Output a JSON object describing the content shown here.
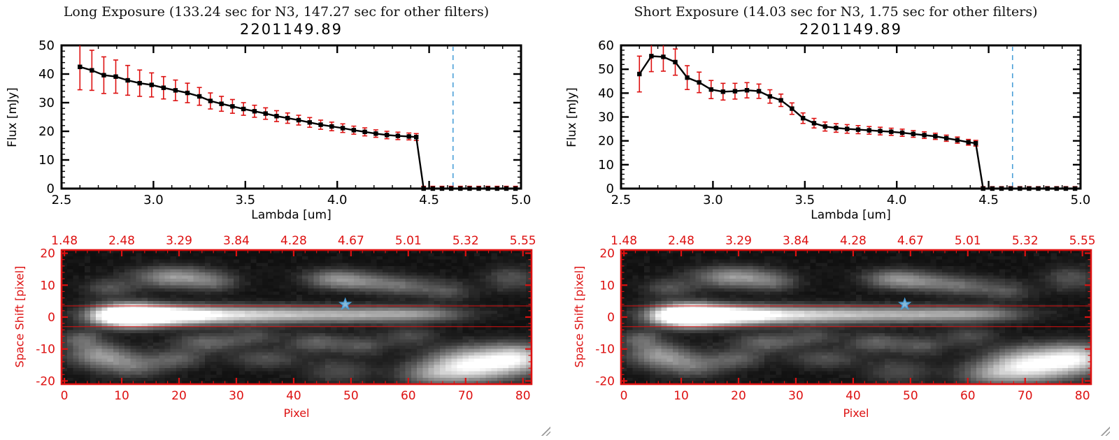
{
  "panels": [
    {
      "title": "Long Exposure (133.24 sec for N3, 147.27 sec for other filters)",
      "spectrum_title": "2201149.89",
      "flux_axis_label": "Flux [mJy]",
      "lambda_axis_label": "Lambda [um]",
      "space_axis_label": "Space Shift [pixel]",
      "pixel_axis_label": "Pixel"
    },
    {
      "title": "Short Exposure (14.03 sec for N3, 1.75 sec for other filters)",
      "spectrum_title": "2201149.89",
      "flux_axis_label": "Flux [mJy]",
      "lambda_axis_label": "Lambda [um]",
      "space_axis_label": "Space Shift [pixel]",
      "pixel_axis_label": "Pixel"
    }
  ],
  "colors": {
    "axis_red": "#dd1111",
    "dashed_blue": "#4a9fd8",
    "line_black": "#000000",
    "background": "#ffffff"
  },
  "image_blobs": [
    [
      11,
      0.5,
      4,
      2.2,
      1.6
    ],
    [
      18,
      0.5,
      6,
      2.0,
      0.85
    ],
    [
      28,
      0.6,
      10,
      1.9,
      0.5
    ],
    [
      42,
      0.8,
      12,
      1.8,
      0.4
    ],
    [
      55,
      0.8,
      8,
      1.7,
      0.3
    ],
    [
      63,
      1,
      5,
      1.6,
      0.22
    ],
    [
      8,
      9,
      3,
      2,
      0.22
    ],
    [
      19,
      12.5,
      4.5,
      2.2,
      0.5
    ],
    [
      26,
      11,
      3,
      2,
      0.25
    ],
    [
      47,
      12,
      3.5,
      2,
      0.4
    ],
    [
      53,
      11,
      4,
      2,
      0.3
    ],
    [
      60,
      9.5,
      4,
      2,
      0.25
    ],
    [
      67,
      8,
      3,
      2,
      0.18
    ],
    [
      78,
      12,
      3,
      2.5,
      0.22
    ],
    [
      3,
      -7,
      2.5,
      2,
      0.3
    ],
    [
      6,
      -12,
      3.5,
      2.5,
      0.45
    ],
    [
      12,
      -15,
      4,
      2.5,
      0.35
    ],
    [
      20,
      -13,
      3,
      2,
      0.25
    ],
    [
      25,
      -8,
      4,
      2,
      0.3
    ],
    [
      33,
      -6,
      3,
      1.8,
      0.2
    ],
    [
      35,
      -13,
      4,
      2,
      0.22
    ],
    [
      44,
      -8,
      3.5,
      2,
      0.28
    ],
    [
      52,
      -9,
      3,
      2,
      0.22
    ],
    [
      60,
      -6,
      3,
      2,
      0.2
    ],
    [
      48,
      -17,
      4,
      2.5,
      0.2
    ],
    [
      64,
      -18,
      4,
      2.5,
      0.35
    ],
    [
      71,
      -15,
      5,
      3.5,
      0.9
    ],
    [
      79,
      -13,
      4,
      3,
      0.75
    ]
  ],
  "chart_data": [
    {
      "panel": "long_exposure",
      "spectrum": {
        "type": "line",
        "title": "2201149.89",
        "xlabel": "Lambda [um]",
        "ylabel": "Flux [mJy]",
        "xlim": [
          2.5,
          5.0
        ],
        "ylim": [
          0,
          50
        ],
        "xticks": [
          2.5,
          3.0,
          3.5,
          4.0,
          4.5,
          5.0
        ],
        "xtick_labels": [
          "2.5",
          "3.0",
          "3.5",
          "4.0",
          "4.5",
          "5.0"
        ],
        "yticks": [
          0,
          10,
          20,
          30,
          40,
          50
        ],
        "ytick_labels": [
          "0",
          "10",
          "20",
          "30",
          "40",
          "50"
        ],
        "marker": "square",
        "line_color": "#000000",
        "error_color": "#dd1111",
        "dashed_line_x": 4.63,
        "dashed_line_color": "#4a9fd8",
        "points": [
          [
            2.6,
            42.5,
            8.0
          ],
          [
            2.665,
            41.3,
            7.0
          ],
          [
            2.73,
            39.6,
            6.4
          ],
          [
            2.795,
            39.1,
            5.8
          ],
          [
            2.86,
            37.8,
            5.2
          ],
          [
            2.925,
            36.8,
            4.6
          ],
          [
            2.99,
            36.2,
            4.2
          ],
          [
            3.055,
            35.2,
            3.9
          ],
          [
            3.12,
            34.3,
            3.6
          ],
          [
            3.185,
            33.4,
            3.4
          ],
          [
            3.25,
            32.2,
            3.1
          ],
          [
            3.31,
            30.6,
            2.8
          ],
          [
            3.37,
            29.6,
            2.6
          ],
          [
            3.43,
            28.7,
            2.4
          ],
          [
            3.49,
            27.8,
            2.2
          ],
          [
            3.55,
            27.0,
            2.1
          ],
          [
            3.61,
            26.2,
            2.0
          ],
          [
            3.67,
            25.3,
            1.9
          ],
          [
            3.73,
            24.6,
            1.8
          ],
          [
            3.79,
            23.9,
            1.7
          ],
          [
            3.85,
            23.1,
            1.7
          ],
          [
            3.91,
            22.3,
            1.6
          ],
          [
            3.97,
            21.7,
            1.5
          ],
          [
            4.03,
            21.1,
            1.5
          ],
          [
            4.09,
            20.4,
            1.4
          ],
          [
            4.15,
            19.8,
            1.4
          ],
          [
            4.21,
            19.2,
            1.3
          ],
          [
            4.27,
            18.7,
            1.3
          ],
          [
            4.33,
            18.4,
            1.3
          ],
          [
            4.39,
            18.2,
            1.2
          ],
          [
            4.43,
            18.0,
            1.2
          ],
          [
            4.47,
            0,
            0.8
          ],
          [
            4.52,
            0,
            0.8
          ],
          [
            4.57,
            0,
            0.8
          ],
          [
            4.62,
            0,
            0.8
          ],
          [
            4.67,
            0,
            0.8
          ],
          [
            4.72,
            0,
            0.8
          ],
          [
            4.77,
            0,
            0.8
          ],
          [
            4.82,
            0,
            0.8
          ],
          [
            4.87,
            0,
            0.8
          ],
          [
            4.92,
            0,
            0.8
          ],
          [
            4.97,
            0,
            0.8
          ]
        ]
      },
      "image": {
        "type": "heatmap",
        "xlabel": "Pixel",
        "ylabel": "Space Shift [pixel]",
        "xlim": [
          -0.5,
          81.5
        ],
        "ylim": [
          -21,
          21
        ],
        "xticks": [
          0,
          10,
          20,
          30,
          40,
          50,
          60,
          70,
          80
        ],
        "xtick_labels": [
          "0",
          "10",
          "20",
          "30",
          "40",
          "50",
          "60",
          "70",
          "80"
        ],
        "yticks": [
          20,
          10,
          0,
          -10,
          -20
        ],
        "ytick_labels": [
          "20",
          "10",
          "0",
          "-10",
          "-20"
        ],
        "top_axis_labels": [
          "1.48",
          "2.48",
          "3.29",
          "3.84",
          "4.28",
          "4.67",
          "5.01",
          "5.32",
          "5.55"
        ],
        "axis_color": "#dd1111",
        "aperture_lines_y": [
          3.5,
          -3.0
        ],
        "star": {
          "x": 49,
          "y": 4,
          "color": "#4a9fd8"
        }
      }
    },
    {
      "panel": "short_exposure",
      "spectrum": {
        "type": "line",
        "title": "2201149.89",
        "xlabel": "Lambda [um]",
        "ylabel": "Flux [mJy]",
        "xlim": [
          2.5,
          5.0
        ],
        "ylim": [
          0,
          60
        ],
        "xticks": [
          2.5,
          3.0,
          3.5,
          4.0,
          4.5,
          5.0
        ],
        "xtick_labels": [
          "2.5",
          "3.0",
          "3.5",
          "4.0",
          "4.5",
          "5.0"
        ],
        "yticks": [
          0,
          10,
          20,
          30,
          40,
          50,
          60
        ],
        "ytick_labels": [
          "0",
          "10",
          "20",
          "30",
          "40",
          "50",
          "60"
        ],
        "marker": "square",
        "line_color": "#000000",
        "error_color": "#dd1111",
        "dashed_line_x": 4.63,
        "dashed_line_color": "#4a9fd8",
        "points": [
          [
            2.6,
            48.0,
            7.5
          ],
          [
            2.665,
            55.5,
            6.5
          ],
          [
            2.73,
            55.2,
            6.0
          ],
          [
            2.795,
            53.0,
            5.5
          ],
          [
            2.86,
            46.5,
            5.0
          ],
          [
            2.925,
            44.5,
            4.3
          ],
          [
            2.99,
            41.5,
            3.8
          ],
          [
            3.055,
            40.6,
            3.5
          ],
          [
            3.12,
            40.8,
            3.3
          ],
          [
            3.185,
            41.2,
            3.2
          ],
          [
            3.25,
            40.8,
            3.0
          ],
          [
            3.31,
            38.6,
            2.8
          ],
          [
            3.37,
            37.0,
            2.6
          ],
          [
            3.43,
            33.5,
            2.4
          ],
          [
            3.49,
            29.5,
            2.2
          ],
          [
            3.55,
            27.4,
            2.0
          ],
          [
            3.61,
            26.0,
            1.9
          ],
          [
            3.67,
            25.4,
            1.8
          ],
          [
            3.73,
            25.0,
            1.8
          ],
          [
            3.79,
            24.7,
            1.7
          ],
          [
            3.85,
            24.4,
            1.6
          ],
          [
            3.91,
            24.1,
            1.6
          ],
          [
            3.97,
            23.8,
            1.5
          ],
          [
            4.03,
            23.4,
            1.5
          ],
          [
            4.09,
            22.9,
            1.4
          ],
          [
            4.15,
            22.4,
            1.4
          ],
          [
            4.21,
            21.9,
            1.3
          ],
          [
            4.27,
            21.1,
            1.3
          ],
          [
            4.33,
            20.3,
            1.3
          ],
          [
            4.39,
            19.4,
            1.2
          ],
          [
            4.43,
            19.0,
            1.2
          ],
          [
            4.47,
            0,
            0.8
          ],
          [
            4.52,
            0,
            0.8
          ],
          [
            4.57,
            0,
            0.8
          ],
          [
            4.62,
            0,
            0.8
          ],
          [
            4.67,
            0,
            0.8
          ],
          [
            4.72,
            0,
            0.8
          ],
          [
            4.77,
            0,
            0.8
          ],
          [
            4.82,
            0,
            0.8
          ],
          [
            4.87,
            0,
            0.8
          ],
          [
            4.92,
            0,
            0.8
          ],
          [
            4.97,
            0,
            0.8
          ]
        ]
      },
      "image": {
        "type": "heatmap",
        "xlabel": "Pixel",
        "ylabel": "Space Shift [pixel]",
        "xlim": [
          -0.5,
          81.5
        ],
        "ylim": [
          -21,
          21
        ],
        "xticks": [
          0,
          10,
          20,
          30,
          40,
          50,
          60,
          70,
          80
        ],
        "xtick_labels": [
          "0",
          "10",
          "20",
          "30",
          "40",
          "50",
          "60",
          "70",
          "80"
        ],
        "yticks": [
          20,
          10,
          0,
          -10,
          -20
        ],
        "ytick_labels": [
          "20",
          "10",
          "0",
          "-10",
          "-20"
        ],
        "top_axis_labels": [
          "1.48",
          "2.48",
          "3.29",
          "3.84",
          "4.28",
          "4.67",
          "5.01",
          "5.32",
          "5.55"
        ],
        "axis_color": "#dd1111",
        "aperture_lines_y": [
          3.5,
          -3.0
        ],
        "star": {
          "x": 49,
          "y": 4,
          "color": "#4a9fd8"
        }
      }
    }
  ]
}
